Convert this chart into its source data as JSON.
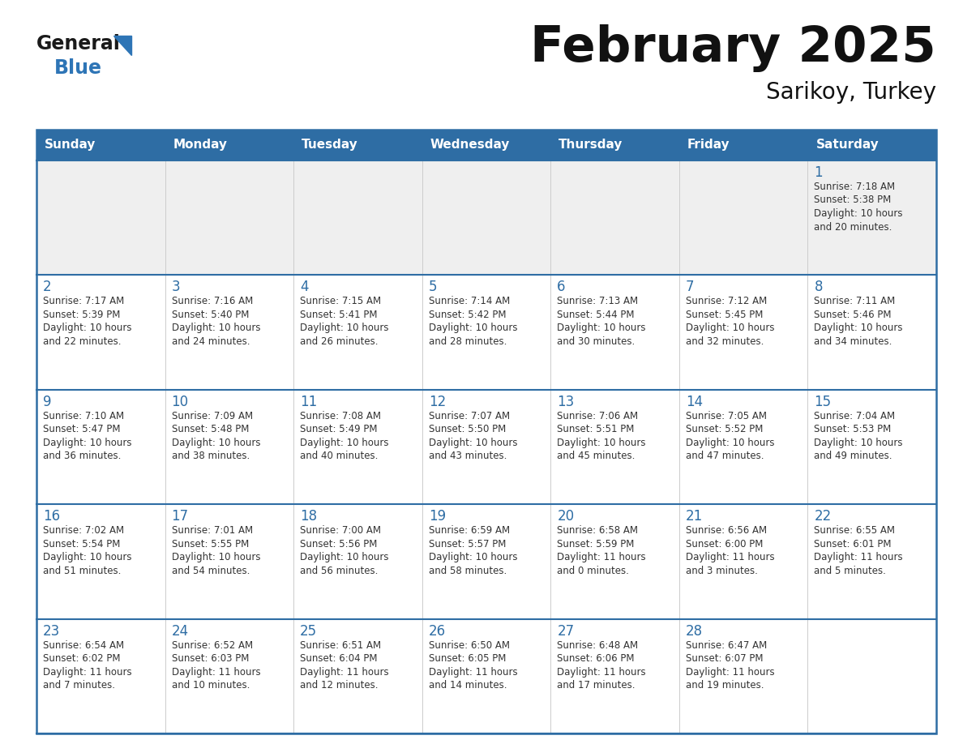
{
  "title": "February 2025",
  "subtitle": "Sarikoy, Turkey",
  "header_color": "#2E6DA4",
  "header_text_color": "#FFFFFF",
  "border_color": "#2E6DA4",
  "row_line_color": "#2E6DA4",
  "cell_line_color": "#CCCCCC",
  "text_color": "#333333",
  "day_num_color": "#2E6DA4",
  "first_row_bg": "#EFEFEF",
  "cell_bg": "#FFFFFF",
  "logo_general_color": "#1a1a1a",
  "logo_blue_color": "#2E75B6",
  "logo_triangle_color": "#2E75B6",
  "days_of_week": [
    "Sunday",
    "Monday",
    "Tuesday",
    "Wednesday",
    "Thursday",
    "Friday",
    "Saturday"
  ],
  "calendar_data": [
    [
      null,
      null,
      null,
      null,
      null,
      null,
      {
        "day": 1,
        "sunrise": "7:18 AM",
        "sunset": "5:38 PM",
        "daylight": "10 hours",
        "daylight2": "and 20 minutes."
      }
    ],
    [
      {
        "day": 2,
        "sunrise": "7:17 AM",
        "sunset": "5:39 PM",
        "daylight": "10 hours",
        "daylight2": "and 22 minutes."
      },
      {
        "day": 3,
        "sunrise": "7:16 AM",
        "sunset": "5:40 PM",
        "daylight": "10 hours",
        "daylight2": "and 24 minutes."
      },
      {
        "day": 4,
        "sunrise": "7:15 AM",
        "sunset": "5:41 PM",
        "daylight": "10 hours",
        "daylight2": "and 26 minutes."
      },
      {
        "day": 5,
        "sunrise": "7:14 AM",
        "sunset": "5:42 PM",
        "daylight": "10 hours",
        "daylight2": "and 28 minutes."
      },
      {
        "day": 6,
        "sunrise": "7:13 AM",
        "sunset": "5:44 PM",
        "daylight": "10 hours",
        "daylight2": "and 30 minutes."
      },
      {
        "day": 7,
        "sunrise": "7:12 AM",
        "sunset": "5:45 PM",
        "daylight": "10 hours",
        "daylight2": "and 32 minutes."
      },
      {
        "day": 8,
        "sunrise": "7:11 AM",
        "sunset": "5:46 PM",
        "daylight": "10 hours",
        "daylight2": "and 34 minutes."
      }
    ],
    [
      {
        "day": 9,
        "sunrise": "7:10 AM",
        "sunset": "5:47 PM",
        "daylight": "10 hours",
        "daylight2": "and 36 minutes."
      },
      {
        "day": 10,
        "sunrise": "7:09 AM",
        "sunset": "5:48 PM",
        "daylight": "10 hours",
        "daylight2": "and 38 minutes."
      },
      {
        "day": 11,
        "sunrise": "7:08 AM",
        "sunset": "5:49 PM",
        "daylight": "10 hours",
        "daylight2": "and 40 minutes."
      },
      {
        "day": 12,
        "sunrise": "7:07 AM",
        "sunset": "5:50 PM",
        "daylight": "10 hours",
        "daylight2": "and 43 minutes."
      },
      {
        "day": 13,
        "sunrise": "7:06 AM",
        "sunset": "5:51 PM",
        "daylight": "10 hours",
        "daylight2": "and 45 minutes."
      },
      {
        "day": 14,
        "sunrise": "7:05 AM",
        "sunset": "5:52 PM",
        "daylight": "10 hours",
        "daylight2": "and 47 minutes."
      },
      {
        "day": 15,
        "sunrise": "7:04 AM",
        "sunset": "5:53 PM",
        "daylight": "10 hours",
        "daylight2": "and 49 minutes."
      }
    ],
    [
      {
        "day": 16,
        "sunrise": "7:02 AM",
        "sunset": "5:54 PM",
        "daylight": "10 hours",
        "daylight2": "and 51 minutes."
      },
      {
        "day": 17,
        "sunrise": "7:01 AM",
        "sunset": "5:55 PM",
        "daylight": "10 hours",
        "daylight2": "and 54 minutes."
      },
      {
        "day": 18,
        "sunrise": "7:00 AM",
        "sunset": "5:56 PM",
        "daylight": "10 hours",
        "daylight2": "and 56 minutes."
      },
      {
        "day": 19,
        "sunrise": "6:59 AM",
        "sunset": "5:57 PM",
        "daylight": "10 hours",
        "daylight2": "and 58 minutes."
      },
      {
        "day": 20,
        "sunrise": "6:58 AM",
        "sunset": "5:59 PM",
        "daylight": "11 hours",
        "daylight2": "and 0 minutes."
      },
      {
        "day": 21,
        "sunrise": "6:56 AM",
        "sunset": "6:00 PM",
        "daylight": "11 hours",
        "daylight2": "and 3 minutes."
      },
      {
        "day": 22,
        "sunrise": "6:55 AM",
        "sunset": "6:01 PM",
        "daylight": "11 hours",
        "daylight2": "and 5 minutes."
      }
    ],
    [
      {
        "day": 23,
        "sunrise": "6:54 AM",
        "sunset": "6:02 PM",
        "daylight": "11 hours",
        "daylight2": "and 7 minutes."
      },
      {
        "day": 24,
        "sunrise": "6:52 AM",
        "sunset": "6:03 PM",
        "daylight": "11 hours",
        "daylight2": "and 10 minutes."
      },
      {
        "day": 25,
        "sunrise": "6:51 AM",
        "sunset": "6:04 PM",
        "daylight": "11 hours",
        "daylight2": "and 12 minutes."
      },
      {
        "day": 26,
        "sunrise": "6:50 AM",
        "sunset": "6:05 PM",
        "daylight": "11 hours",
        "daylight2": "and 14 minutes."
      },
      {
        "day": 27,
        "sunrise": "6:48 AM",
        "sunset": "6:06 PM",
        "daylight": "11 hours",
        "daylight2": "and 17 minutes."
      },
      {
        "day": 28,
        "sunrise": "6:47 AM",
        "sunset": "6:07 PM",
        "daylight": "11 hours",
        "daylight2": "and 19 minutes."
      },
      null
    ]
  ]
}
